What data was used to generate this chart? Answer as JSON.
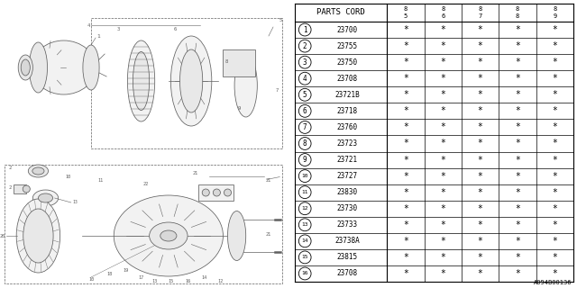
{
  "bg_color": "#ffffff",
  "table": {
    "header_label": "PARTS CORD",
    "col_headers": [
      "85",
      "86",
      "87",
      "88",
      "89"
    ],
    "rows": [
      {
        "num": "1",
        "code": "23700"
      },
      {
        "num": "2",
        "code": "23755"
      },
      {
        "num": "3",
        "code": "23750"
      },
      {
        "num": "4",
        "code": "23708"
      },
      {
        "num": "5",
        "code": "23721B"
      },
      {
        "num": "6",
        "code": "23718"
      },
      {
        "num": "7",
        "code": "23760"
      },
      {
        "num": "8",
        "code": "23723"
      },
      {
        "num": "9",
        "code": "23721"
      },
      {
        "num": "10",
        "code": "23727"
      },
      {
        "num": "11",
        "code": "23830"
      },
      {
        "num": "12",
        "code": "23730"
      },
      {
        "num": "13",
        "code": "23733"
      },
      {
        "num": "14",
        "code": "23738A"
      },
      {
        "num": "15",
        "code": "23815"
      },
      {
        "num": "16",
        "code": "23708"
      }
    ]
  },
  "footer_code": "A094B00136"
}
